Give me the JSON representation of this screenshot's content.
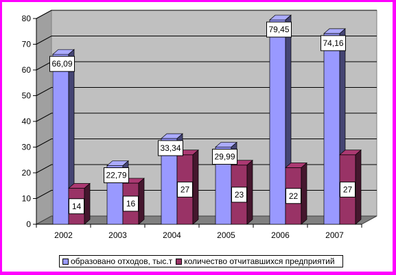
{
  "chart_data": {
    "type": "bar",
    "categories": [
      "2002",
      "2003",
      "2004",
      "2005",
      "2006",
      "2007"
    ],
    "series": [
      {
        "name": "образовано отходов, тыс.т",
        "values": [
          66.09,
          22.79,
          33.34,
          29.99,
          79.45,
          74.16
        ],
        "labels": [
          "66,09",
          "22,79",
          "33,34",
          "29,99",
          "79,45",
          "74,16"
        ],
        "color": "#9999ff"
      },
      {
        "name": "количество отчитавшихся предприятий",
        "values": [
          14,
          16,
          27,
          23,
          22,
          27
        ],
        "labels": [
          "14",
          "16",
          "27",
          "23",
          "22",
          "27"
        ],
        "color": "#993366"
      }
    ],
    "ylim": [
      0,
      80
    ],
    "yticks": [
      "0",
      "10",
      "20",
      "30",
      "40",
      "50",
      "60",
      "70",
      "80"
    ],
    "grid": true,
    "legend_position": "bottom",
    "plot_background": "#c0c0c0",
    "frame_color": "#ff00ff"
  }
}
